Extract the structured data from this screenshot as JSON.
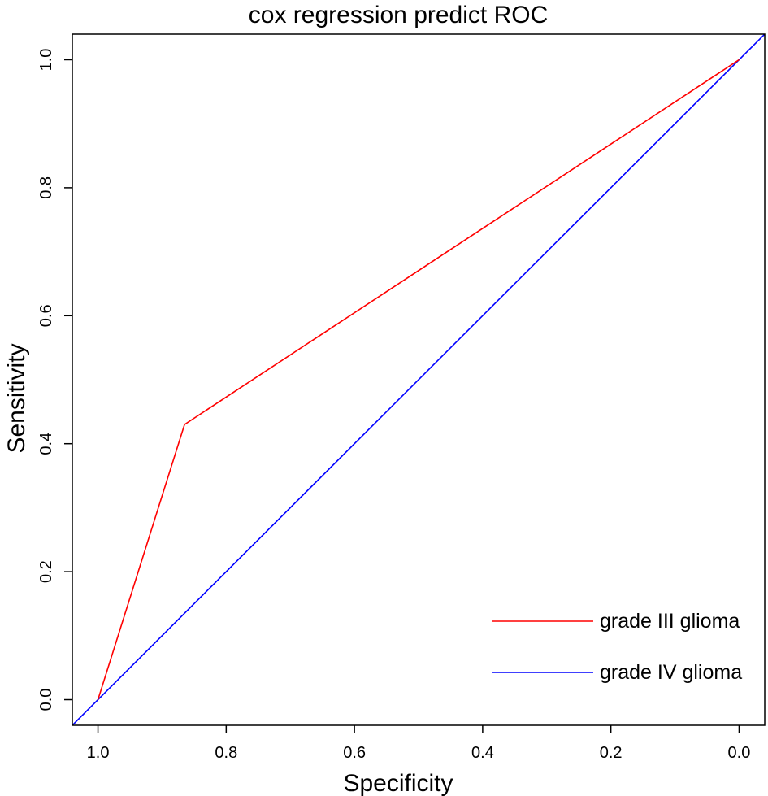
{
  "chart_data": {
    "type": "line",
    "title": "cox regression predict ROC",
    "xlabel": "Specificity",
    "ylabel": "Sensitivity",
    "x_reversed": true,
    "xlim": [
      1.04,
      -0.04
    ],
    "ylim": [
      -0.04,
      1.04
    ],
    "x_ticks": [
      1.0,
      0.8,
      0.6,
      0.4,
      0.2,
      0.0
    ],
    "x_tick_labels": [
      "1.0",
      "0.8",
      "0.6",
      "0.4",
      "0.2",
      "0.0"
    ],
    "y_ticks": [
      0.0,
      0.2,
      0.4,
      0.6,
      0.8,
      1.0
    ],
    "y_tick_labels": [
      "0.0",
      "0.2",
      "0.4",
      "0.6",
      "0.8",
      "1.0"
    ],
    "grid": false,
    "legend_position": "bottom-right",
    "series": [
      {
        "name": "grade III glioma",
        "color": "#ff0000",
        "x": [
          1.0,
          0.865,
          0.0
        ],
        "y": [
          0.0,
          0.43,
          1.0
        ]
      },
      {
        "name": "grade IV glioma",
        "color": "#0000ff",
        "x": [
          1.04,
          -0.04
        ],
        "y": [
          -0.04,
          1.04
        ]
      }
    ]
  }
}
